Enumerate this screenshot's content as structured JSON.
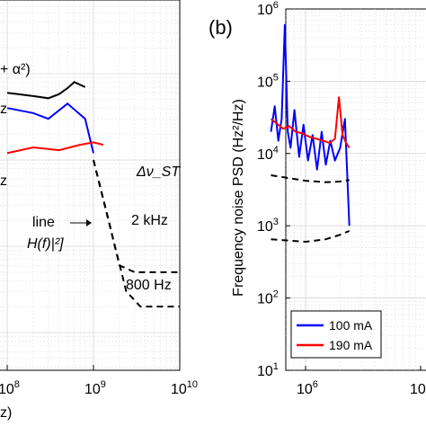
{
  "chart_data": [
    {
      "panel": "left (cropped)",
      "type": "line",
      "x_scale": "log",
      "y_scale": "log",
      "xlim": [
        0,
        10000000000
      ],
      "ylim": [
        null,
        null
      ],
      "x_tick_labels": [
        "10^8",
        "10^9",
        "10^10"
      ],
      "xlabel_fragment": "z)",
      "annotations": {
        "formula_top": "+ α²)",
        "label_upper": "z",
        "label_lower": "z",
        "linewidth_header": "Δν_ST",
        "line_label_1": "line",
        "line_label_2": "H(f)|²]",
        "level_2khz": "2 kHz",
        "level_800hz": "800 Hz"
      },
      "series": [
        {
          "color": "#000000",
          "x": [
            100000000,
            200000000,
            300000000,
            400000000,
            500000000,
            600000000,
            800000000
          ],
          "y": [
            60000,
            55000,
            52000,
            58000,
            68000,
            80000,
            70000
          ]
        },
        {
          "color": "#0000ff",
          "x": [
            100000000,
            200000000,
            300000000,
            500000000,
            800000000,
            1000000000
          ],
          "y": [
            40000,
            35000,
            30000,
            45000,
            30000,
            12000
          ]
        },
        {
          "color": "#ff0000",
          "x": [
            100000000,
            200000000,
            400000000,
            700000000,
            1000000000,
            1300000000
          ],
          "y": [
            12000,
            14000,
            13000,
            15000,
            16000,
            15000
          ]
        },
        {
          "color": "#000000",
          "dashed": true,
          "x": [
            1000000000,
            1500000000,
            2000000000,
            3000000000,
            10000000000
          ],
          "y": [
            10000,
            2000,
            600,
            500,
            500
          ]
        },
        {
          "color": "#000000",
          "dashed": true,
          "x": [
            1000000000,
            1600000000,
            2400000000,
            3500000000,
            10000000000
          ],
          "y": [
            10000,
            1500,
            300,
            200,
            200
          ]
        }
      ]
    },
    {
      "panel": "(b)",
      "type": "line",
      "x_scale": "log",
      "y_scale": "log",
      "ylim": [
        10,
        1000000
      ],
      "ylabel": "Frequency noise PSD (Hz²/Hz)",
      "y_tick_labels": [
        "10^1",
        "10^2",
        "10^3",
        "10^4",
        "10^5",
        "10^6"
      ],
      "x_tick_labels": [
        "10^6",
        "10"
      ],
      "legend": {
        "position": "bottom-left",
        "entries": [
          "100 mA",
          "190 mA"
        ]
      },
      "series": [
        {
          "name": "100 mA",
          "color": "#0000ff",
          "x": [
            500000,
            540000,
            580000,
            620000,
            660000,
            700000,
            740000,
            800000,
            880000,
            960000,
            1050000,
            1150000,
            1260000,
            1380000,
            1500000,
            1640000,
            1800000,
            2000000,
            2200000,
            2400000
          ],
          "y": [
            20000,
            45000,
            15000,
            30000,
            600000,
            20000,
            12000,
            40000,
            9000,
            25000,
            8000,
            18000,
            6000,
            20000,
            7000,
            15000,
            8000,
            12000,
            30000,
            1000
          ]
        },
        {
          "name": "190 mA",
          "color": "#ff0000",
          "x": [
            500000,
            560000,
            640000,
            720000,
            820000,
            940000,
            1080000,
            1240000,
            1420000,
            1620000,
            1800000,
            1950000,
            2100000,
            2250000,
            2400000
          ],
          "y": [
            30000,
            26000,
            22000,
            24000,
            20000,
            19000,
            17000,
            16000,
            15000,
            14000,
            16000,
            60000,
            18000,
            14000,
            12000
          ]
        },
        {
          "name": "",
          "color": "#000000",
          "dashed": true,
          "x": [
            500000,
            1000000,
            1500000,
            2000000,
            2400000
          ],
          "y": [
            5000,
            4200,
            4000,
            4100,
            4300
          ]
        },
        {
          "name": "",
          "color": "#000000",
          "dashed": true,
          "x": [
            500000,
            1000000,
            1500000,
            2000000,
            2400000
          ],
          "y": [
            650,
            600,
            650,
            750,
            850
          ]
        }
      ]
    }
  ],
  "panel_b_label": "(b)",
  "tick_text": {
    "base": "10",
    "left_exp": [
      "8",
      "9",
      "10"
    ],
    "b_y_exp": [
      "1",
      "2",
      "3",
      "4",
      "5",
      "6"
    ],
    "b_x_exp": [
      "6"
    ],
    "b_x_partial": "10"
  }
}
